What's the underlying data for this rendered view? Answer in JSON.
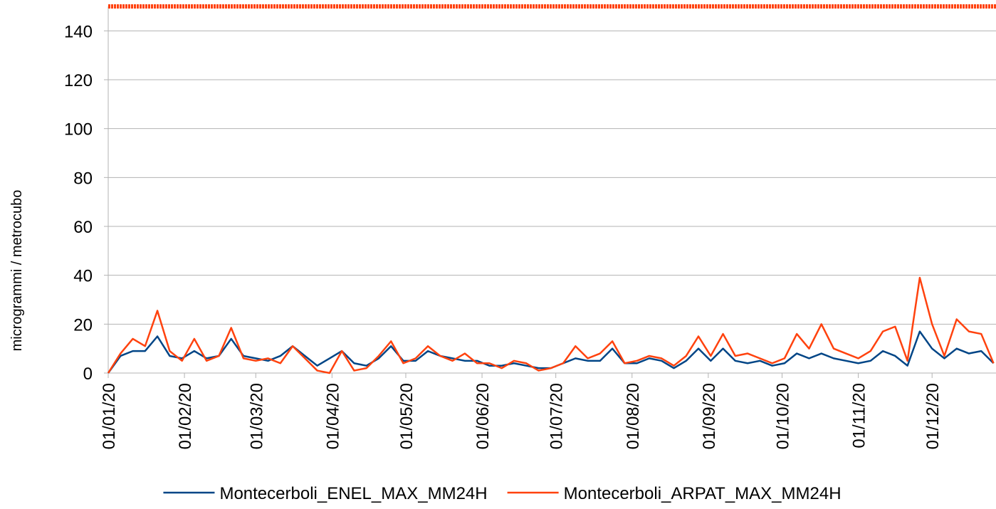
{
  "chart_data": {
    "type": "line",
    "y_label": "microgrammi / metrocubo",
    "x": [
      "01/01/20",
      "06/01/20",
      "11/01/20",
      "16/01/20",
      "21/01/20",
      "26/01/20",
      "31/01/20",
      "05/02/20",
      "10/02/20",
      "15/02/20",
      "20/02/20",
      "25/02/20",
      "01/03/20",
      "06/03/20",
      "11/03/20",
      "16/03/20",
      "21/03/20",
      "26/03/20",
      "31/03/20",
      "05/04/20",
      "10/04/20",
      "15/04/20",
      "20/04/20",
      "25/04/20",
      "30/04/20",
      "05/05/20",
      "10/05/20",
      "15/05/20",
      "20/05/20",
      "25/05/20",
      "30/05/20",
      "04/06/20",
      "09/06/20",
      "14/06/20",
      "19/06/20",
      "24/06/20",
      "29/06/20",
      "04/07/20",
      "09/07/20",
      "14/07/20",
      "19/07/20",
      "24/07/20",
      "29/07/20",
      "03/08/20",
      "08/08/20",
      "13/08/20",
      "18/08/20",
      "23/08/20",
      "28/08/20",
      "02/09/20",
      "07/09/20",
      "12/09/20",
      "17/09/20",
      "22/09/20",
      "27/09/20",
      "02/10/20",
      "07/10/20",
      "12/10/20",
      "17/10/20",
      "22/10/20",
      "27/10/20",
      "01/11/20",
      "06/11/20",
      "11/11/20",
      "16/11/20",
      "21/11/20",
      "26/11/20",
      "01/12/20",
      "06/12/20",
      "11/12/20",
      "16/12/20",
      "21/12/20",
      "26/12/20"
    ],
    "series": [
      {
        "name": "Montecerboli_ENEL_MAX_MM24H",
        "color": "#004586",
        "values": [
          0,
          7,
          9,
          9,
          15,
          7,
          6,
          9,
          6,
          7,
          14,
          7,
          6,
          5,
          7,
          11,
          7,
          3,
          6,
          9,
          4,
          3,
          6,
          11,
          5,
          5,
          9,
          7,
          6,
          5,
          5,
          3,
          3,
          4,
          3,
          2,
          2,
          4,
          6,
          5,
          5,
          10,
          4,
          4,
          6,
          5,
          2,
          5,
          10,
          5,
          10,
          5,
          4,
          5,
          3,
          4,
          8,
          6,
          8,
          6,
          5,
          4,
          5,
          9,
          7,
          3,
          17,
          10,
          6,
          10,
          8,
          9,
          4
        ]
      },
      {
        "name": "Montecerboli_ARPAT_MAX_MM24H",
        "color": "#ff420e",
        "values": [
          0,
          8,
          14,
          11,
          25.5,
          9,
          5,
          14,
          5,
          7,
          18.5,
          6,
          5,
          6,
          4,
          11,
          6,
          1,
          0,
          9,
          1,
          2,
          7,
          13,
          4,
          6,
          11,
          7,
          5,
          8,
          4,
          4,
          2,
          5,
          4,
          1,
          2,
          4,
          11,
          6,
          8,
          13,
          4,
          5,
          7,
          6,
          3,
          7,
          15,
          7,
          16,
          7,
          8,
          6,
          4,
          6,
          16,
          10,
          20,
          10,
          8,
          6,
          9,
          17,
          19,
          5,
          39,
          20,
          7,
          22,
          17,
          16,
          4
        ]
      }
    ],
    "reference_line": {
      "value": 150,
      "color": "#ff420e"
    },
    "xlim": [
      "01/01/20",
      "27/12/20"
    ],
    "xticks": [
      "01/01/20",
      "01/02/20",
      "01/03/20",
      "01/04/20",
      "01/05/20",
      "01/06/20",
      "01/07/20",
      "01/08/20",
      "01/09/20",
      "01/10/20",
      "01/11/20",
      "01/12/20"
    ],
    "ylim": [
      0,
      150
    ],
    "yticks": [
      0,
      20,
      40,
      60,
      80,
      100,
      120,
      140
    ],
    "grid": true,
    "legend": "bottom"
  }
}
